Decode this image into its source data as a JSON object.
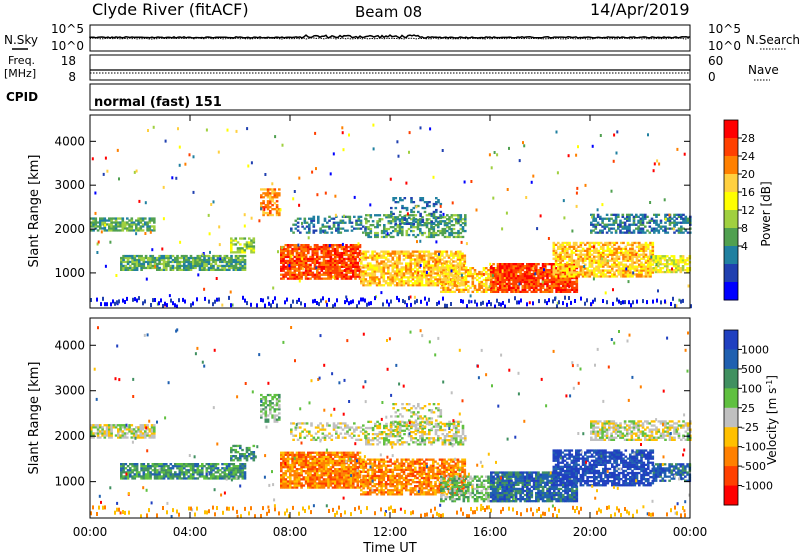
{
  "header": {
    "site": "Clyde River (fitACF)",
    "beam": "Beam 08",
    "date": "14/Apr/2019"
  },
  "noise_panel": {
    "left_label": "N.Sky",
    "right_label": "N.Search",
    "left_ticks": [
      "10^5",
      "10^0"
    ],
    "right_ticks": [
      "10^5",
      "10^0"
    ]
  },
  "freq_panel": {
    "left_label_1": "Freq.",
    "left_label_2": "[MHz]",
    "left_ticks": [
      "18",
      "8"
    ],
    "right_label": "Nave",
    "right_ticks": [
      "60",
      "0"
    ]
  },
  "cpid_panel": {
    "label": "CPID",
    "value": "normal (fast) 151"
  },
  "chart_data": [
    {
      "type": "heatmap",
      "name": "power",
      "ylabel": "Slant Range [km]",
      "xlabel": "",
      "ylim": [
        200,
        4600
      ],
      "yticks": [
        "1000",
        "2000",
        "3000",
        "4000"
      ],
      "colorbar_label": "Power [dB]",
      "colorbar_ticks": [
        "28",
        "24",
        "20",
        "16",
        "12",
        "8",
        "4"
      ],
      "colorbar_colors": [
        "#ff0000",
        "#ff4000",
        "#ff8000",
        "#ffd040",
        "#ffff00",
        "#a0d040",
        "#50a050",
        "#2080a0",
        "#2040b0",
        "#0000ff"
      ]
    },
    {
      "type": "heatmap",
      "name": "velocity",
      "ylabel": "Slant Range [km]",
      "xlabel": "Time UT",
      "ylim": [
        200,
        4600
      ],
      "yticks": [
        "1000",
        "2000",
        "3000",
        "4000"
      ],
      "xticks": [
        "00:00",
        "04:00",
        "08:00",
        "12:00",
        "16:00",
        "20:00",
        "00:00"
      ],
      "colorbar_label": "Velocity [m s",
      "colorbar_label_exp": "-1",
      "colorbar_label_end": "]",
      "colorbar_ticks": [
        "1000",
        "500",
        "100",
        "25",
        "-25",
        "-100",
        "-500",
        "-1000"
      ],
      "colorbar_colors": [
        "#2040c0",
        "#2060b0",
        "#409060",
        "#60c040",
        "#c0c0c0",
        "#ffc000",
        "#ff8000",
        "#ff4000",
        "#ff0000"
      ]
    }
  ]
}
